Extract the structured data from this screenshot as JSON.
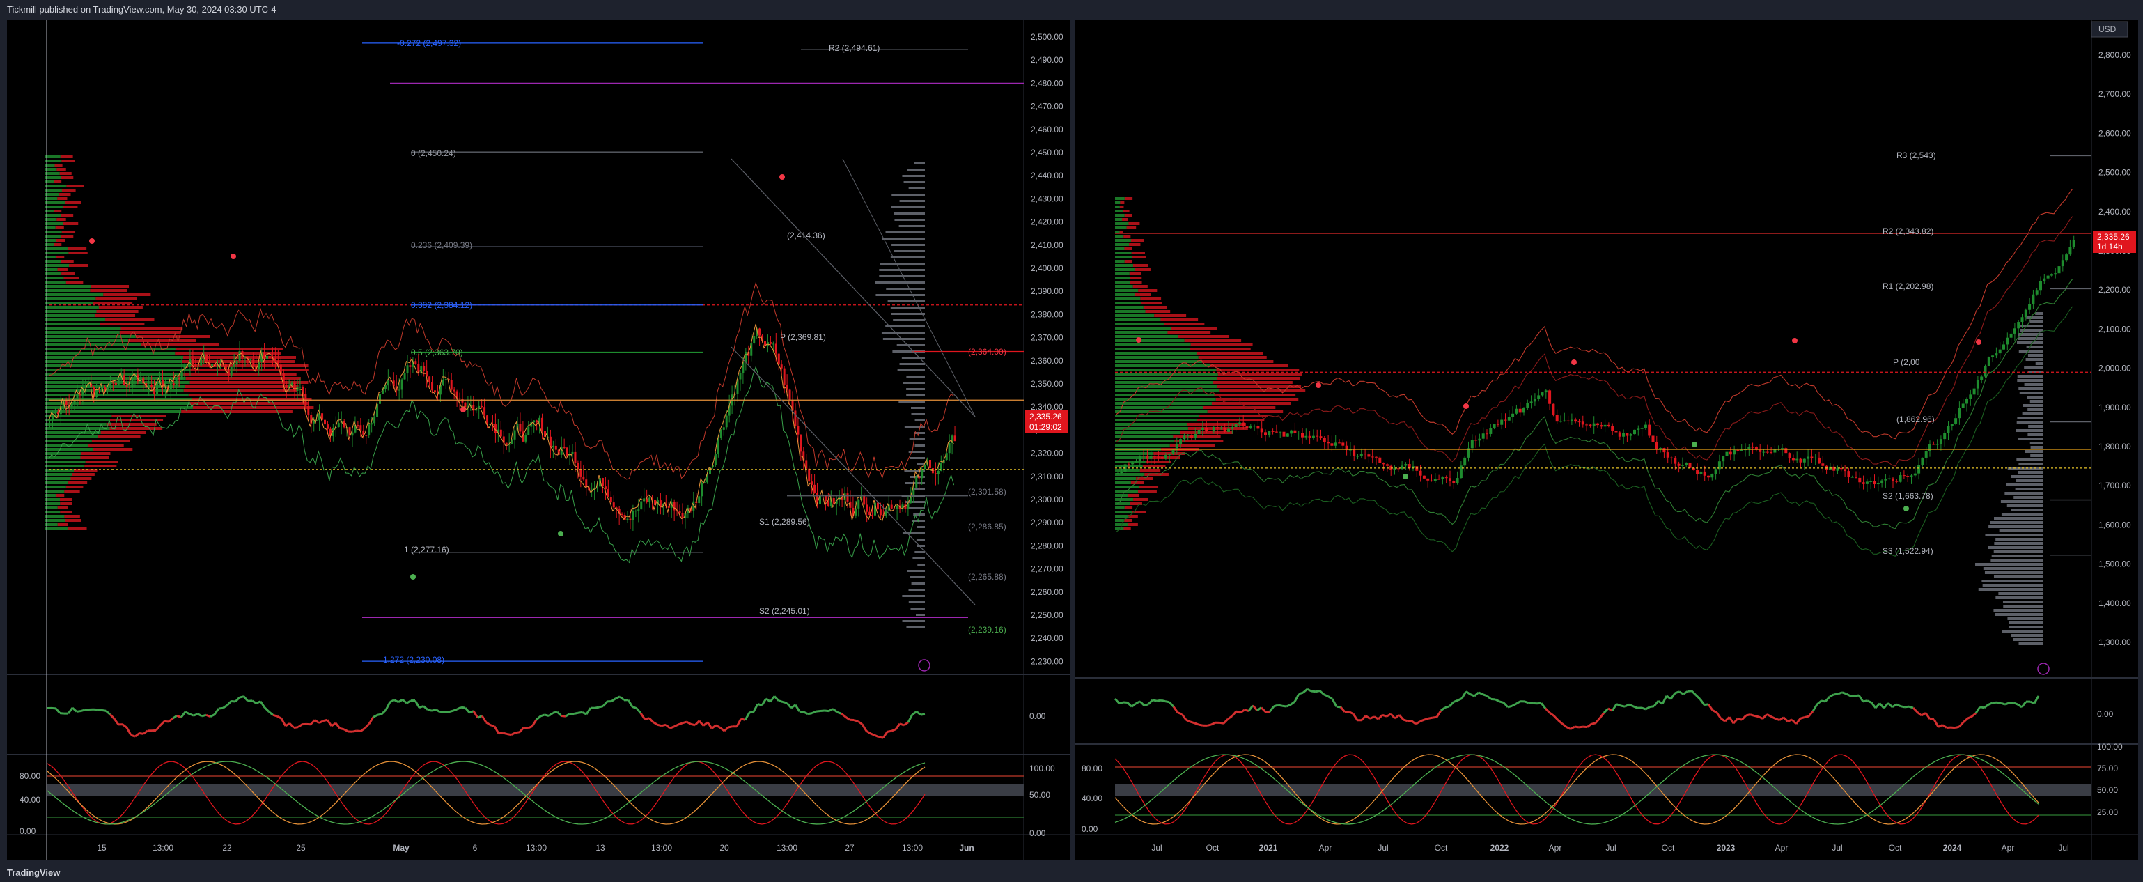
{
  "header": {
    "title": "Tickmill published on TradingView.com, May 30, 2024 03:30 UTC-4"
  },
  "footer": {
    "logo": "TradingView"
  },
  "colors": {
    "up": "#1e8c2e",
    "down": "#e0161e",
    "bg": "#000000",
    "grid": "#1a1d25"
  },
  "left": {
    "price_axis": [
      "2,500.00",
      "2,490.00",
      "2,480.00",
      "2,470.00",
      "2,460.00",
      "2,450.00",
      "2,440.00",
      "2,430.00",
      "2,420.00",
      "2,410.00",
      "2,400.00",
      "2,390.00",
      "2,380.00",
      "2,370.00",
      "2,360.00",
      "2,350.00",
      "2,340.00",
      "2,330.00",
      "2,320.00",
      "2,310.00",
      "2,300.00",
      "2,290.00",
      "2,280.00",
      "2,270.00",
      "2,260.00",
      "2,250.00",
      "2,240.00",
      "2,230.00"
    ],
    "time_axis": [
      "15",
      "13:00",
      "22",
      "25",
      "May",
      "6",
      "13:00",
      "13",
      "13:00",
      "20",
      "13:00",
      "27",
      "13:00",
      "Jun"
    ],
    "levels": [
      {
        "text": "-0.272 (2,497.32)",
        "color": "#2962ff"
      },
      {
        "text": "R2 (2,494.61)",
        "color": "#b2b5be"
      },
      {
        "text": "0 (2,450.24)",
        "color": "#9598a1"
      },
      {
        "text": "0.236 (2,409.39)",
        "color": "#787b86"
      },
      {
        "text": "(2,414.36)",
        "color": "#b2b5be"
      },
      {
        "text": "0.382 (2,384.12)",
        "color": "#2962ff"
      },
      {
        "text": "P (2,369.81)",
        "color": "#b2b5be"
      },
      {
        "text": "0.5 (2,363.70)",
        "color": "#4caf50"
      },
      {
        "text": "(2,364.00)",
        "color": "#f23645"
      },
      {
        "text": "(2,301.58)",
        "color": "#787b86"
      },
      {
        "text": "S1 (2,289.56)",
        "color": "#b2b5be"
      },
      {
        "text": "(2,286.85)",
        "color": "#787b86"
      },
      {
        "text": "1 (2,277.16)",
        "color": "#b2b5be"
      },
      {
        "text": "(2,265.88)",
        "color": "#787b86"
      },
      {
        "text": "S2 (2,245.01)",
        "color": "#b2b5be"
      },
      {
        "text": "(2,239.16)",
        "color": "#4caf50"
      },
      {
        "text": "1.272 (2,230.08)",
        "color": "#2962ff"
      }
    ],
    "price_tag": {
      "price": "2,335.26",
      "time": "01:29:02"
    },
    "osc1_axis": [
      "0.00"
    ],
    "osc2_axis": [
      "80.00",
      "40.00",
      "0.00",
      "100.00",
      "50.00",
      "0.00"
    ]
  },
  "right": {
    "currency": "USD",
    "price_axis": [
      "2,800.00",
      "2,700.00",
      "2,600.00",
      "2,500.00",
      "2,400.00",
      "2,300.00",
      "2,200.00",
      "2,100.00",
      "2,000.00",
      "1,900.00",
      "1,800.00",
      "1,700.00",
      "1,600.00",
      "1,500.00",
      "1,400.00",
      "1,300.00"
    ],
    "time_axis": [
      "Jul",
      "Oct",
      "2021",
      "Apr",
      "Jul",
      "Oct",
      "2022",
      "Apr",
      "Jul",
      "Oct",
      "2023",
      "Apr",
      "Jul",
      "Oct",
      "2024",
      "Apr",
      "Jul"
    ],
    "levels": [
      {
        "text": "R3 (2,543)",
        "color": "#b2b5be"
      },
      {
        "text": "R2 (2,343.82)",
        "color": "#b2b5be"
      },
      {
        "text": "R1 (2,202.98)",
        "color": "#b2b5be"
      },
      {
        "text": "P (2,00",
        "color": "#b2b5be"
      },
      {
        "text": "(1,862.96)",
        "color": "#b2b5be"
      },
      {
        "text": "S2 (1,663.78)",
        "color": "#b2b5be"
      },
      {
        "text": "S3 (1,522.94)",
        "color": "#b2b5be"
      }
    ],
    "price_tag": {
      "price": "2,335.26",
      "time": "1d 14h"
    },
    "osc1_axis": [
      "0.00"
    ],
    "osc2_axis": [
      "100.00",
      "80.00",
      "75.00",
      "50.00",
      "40.00",
      "25.00",
      "0.00"
    ]
  }
}
